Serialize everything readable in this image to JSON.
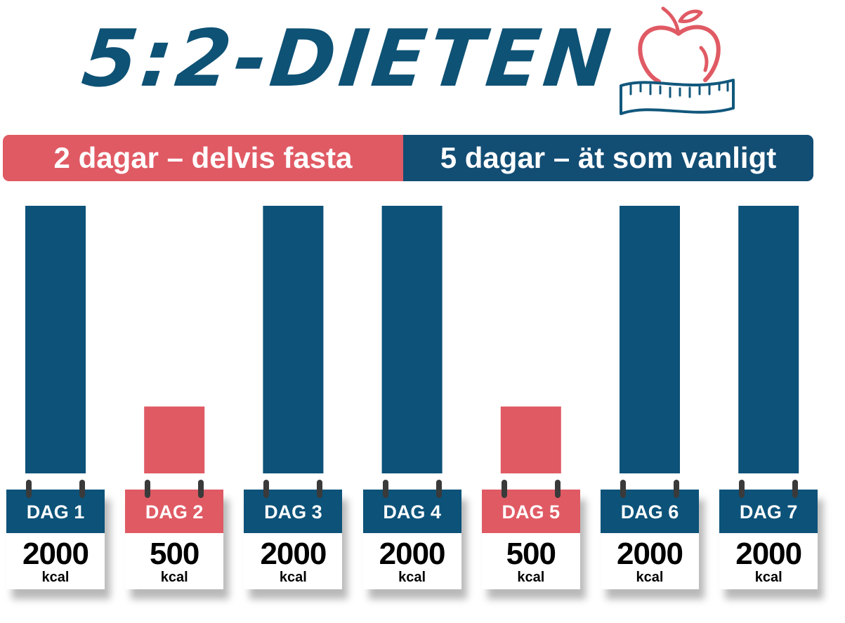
{
  "title": "5:2-DIETEN",
  "banner": {
    "left_label": "2 dagar – delvis fasta",
    "right_label": "5 dagar – ät som vanligt"
  },
  "colors": {
    "fast": "#e05a64",
    "normal": "#0c5279",
    "banner_normal": "#124d74",
    "apple": "#e05a64",
    "tape": "#11577c"
  },
  "chart_data": {
    "type": "bar",
    "categories": [
      "DAG 1",
      "DAG 2",
      "DAG 3",
      "DAG 4",
      "DAG 5",
      "DAG 6",
      "DAG 7"
    ],
    "values": [
      2000,
      500,
      2000,
      2000,
      500,
      2000,
      2000
    ],
    "value_labels": [
      "2000",
      "500",
      "2000",
      "2000",
      "500",
      "2000",
      "2000"
    ],
    "unit": "kcal",
    "fast_days": [
      false,
      true,
      false,
      false,
      true,
      false,
      false
    ],
    "ylim": [
      0,
      2000
    ],
    "grid": false,
    "legend": "top"
  }
}
